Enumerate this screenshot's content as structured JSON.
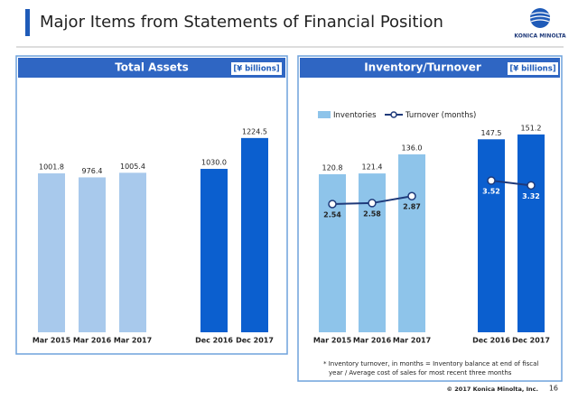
{
  "header": {
    "title": "Major Items from Statements of Financial Position",
    "logo": "KONICA MINOLTA"
  },
  "chart_data": [
    {
      "type": "bar",
      "title": "Total Assets",
      "unit": "[¥ billions]",
      "categories": [
        "Mar 2015",
        "Mar 2016",
        "Mar 2017",
        null,
        "Dec 2016",
        "Dec 2017"
      ],
      "values": [
        1001.8,
        976.4,
        1005.4,
        null,
        1030.0,
        1224.5
      ],
      "value_labels": [
        "1001.8",
        "976.4",
        "1005.4",
        null,
        "1030.0",
        "1224.5"
      ],
      "colors": [
        "#a8c9ec",
        "#a8c9ec",
        "#a8c9ec",
        null,
        "#0b5fcf",
        "#0b5fcf"
      ]
    },
    {
      "type": "combo",
      "title": "Inventory/Turnover",
      "unit": "[¥ billions]",
      "categories": [
        "Mar 2015",
        "Mar 2016",
        "Mar 2017",
        null,
        "Dec 2016",
        "Dec 2017"
      ],
      "series": [
        {
          "name": "Inventories",
          "type": "bar",
          "color": "#8ec4ea",
          "colors": [
            "#8ec4ea",
            "#8ec4ea",
            "#8ec4ea",
            null,
            "#0b5fcf",
            "#0b5fcf"
          ],
          "values": [
            120.8,
            121.4,
            136.0,
            null,
            147.5,
            151.2
          ],
          "value_labels": [
            "120.8",
            "121.4",
            "136.0",
            null,
            "147.5",
            "151.2"
          ]
        },
        {
          "name": "Turnover (months)",
          "type": "line",
          "axis": "y2",
          "color": "#1f3a7a",
          "values": [
            2.54,
            2.58,
            2.87,
            null,
            3.52,
            3.32
          ]
        }
      ],
      "note": [
        "* Inventory turnover, in months = Inventory balance at end of fiscal",
        "year / Average cost of sales for most recent three months"
      ]
    }
  ],
  "footer": {
    "copyright": "© 2017 Konica Minolta, Inc.",
    "page": 16
  }
}
